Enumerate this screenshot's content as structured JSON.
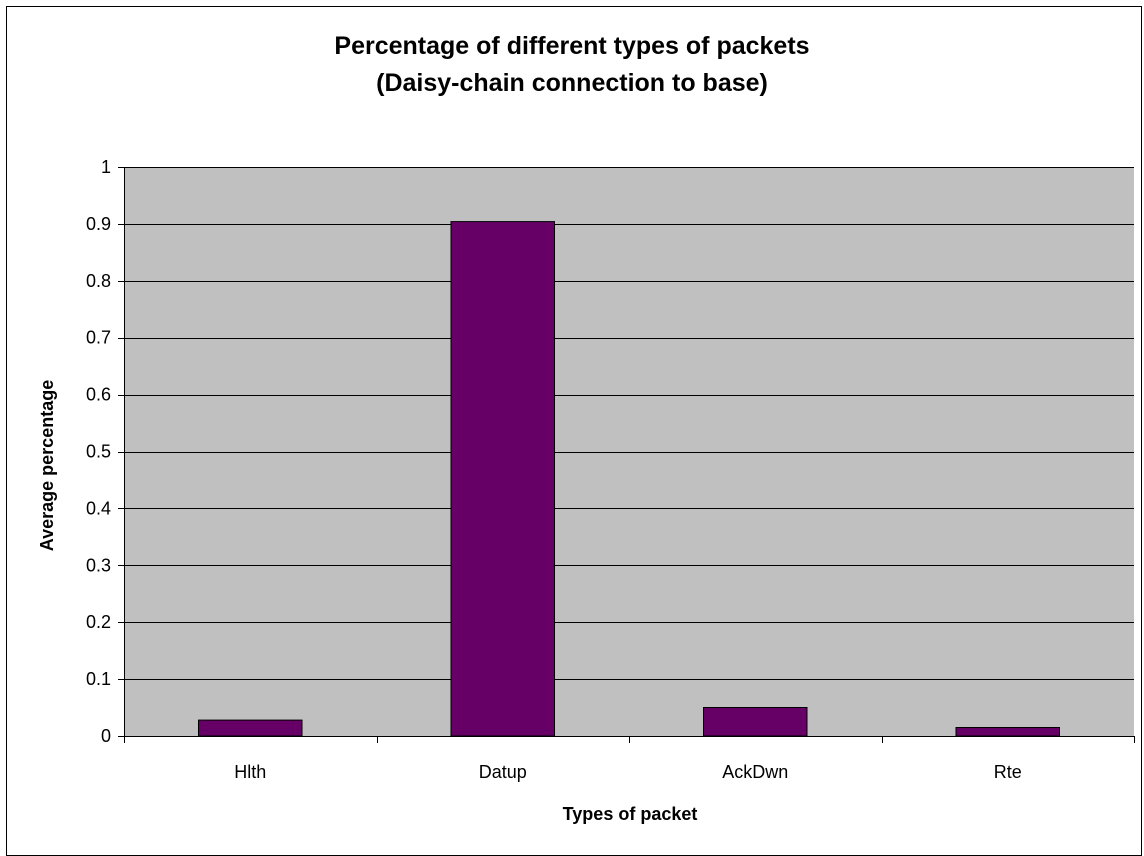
{
  "chart_data": {
    "type": "bar",
    "title": "Percentage of different types of packets (Daisy-chain connection to base)",
    "title_lines": [
      "Percentage of different types of packets",
      "(Daisy-chain connection to base)"
    ],
    "xlabel": "Types of packet",
    "ylabel": "Average percentage",
    "categories": [
      "Hlth",
      "Datup",
      "AckDwn",
      "Rte"
    ],
    "values": [
      0.028,
      0.904,
      0.05,
      0.015
    ],
    "ylim": [
      0,
      1
    ],
    "yticks": [
      0,
      0.1,
      0.2,
      0.3,
      0.4,
      0.5,
      0.6,
      0.7,
      0.8,
      0.9,
      1
    ],
    "ytick_labels": [
      "0",
      "0.1",
      "0.2",
      "0.3",
      "0.4",
      "0.5",
      "0.6",
      "0.7",
      "0.8",
      "0.9",
      "1"
    ],
    "grid": true,
    "legend": "none",
    "colors": {
      "bar_fill": "#660066",
      "plot_background": "#c0c0c0",
      "gridline": "#000000",
      "axis": "#000000"
    }
  }
}
